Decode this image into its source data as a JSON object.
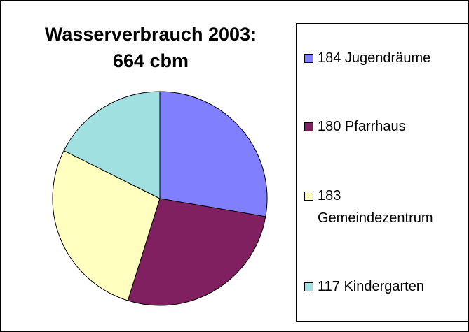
{
  "chart_data": {
    "type": "pie",
    "title": "Wasserverbrauch 2003: 664 cbm",
    "categories": [
      "184 Jugendräume",
      "180 Pfarrhaus",
      "183 Gemeindezentrum",
      "117 Kindergarten"
    ],
    "values": [
      184,
      180,
      183,
      117
    ],
    "colors": [
      "#8080ff",
      "#802060",
      "#ffffc0",
      "#a0e0e0"
    ],
    "legend": "right"
  }
}
